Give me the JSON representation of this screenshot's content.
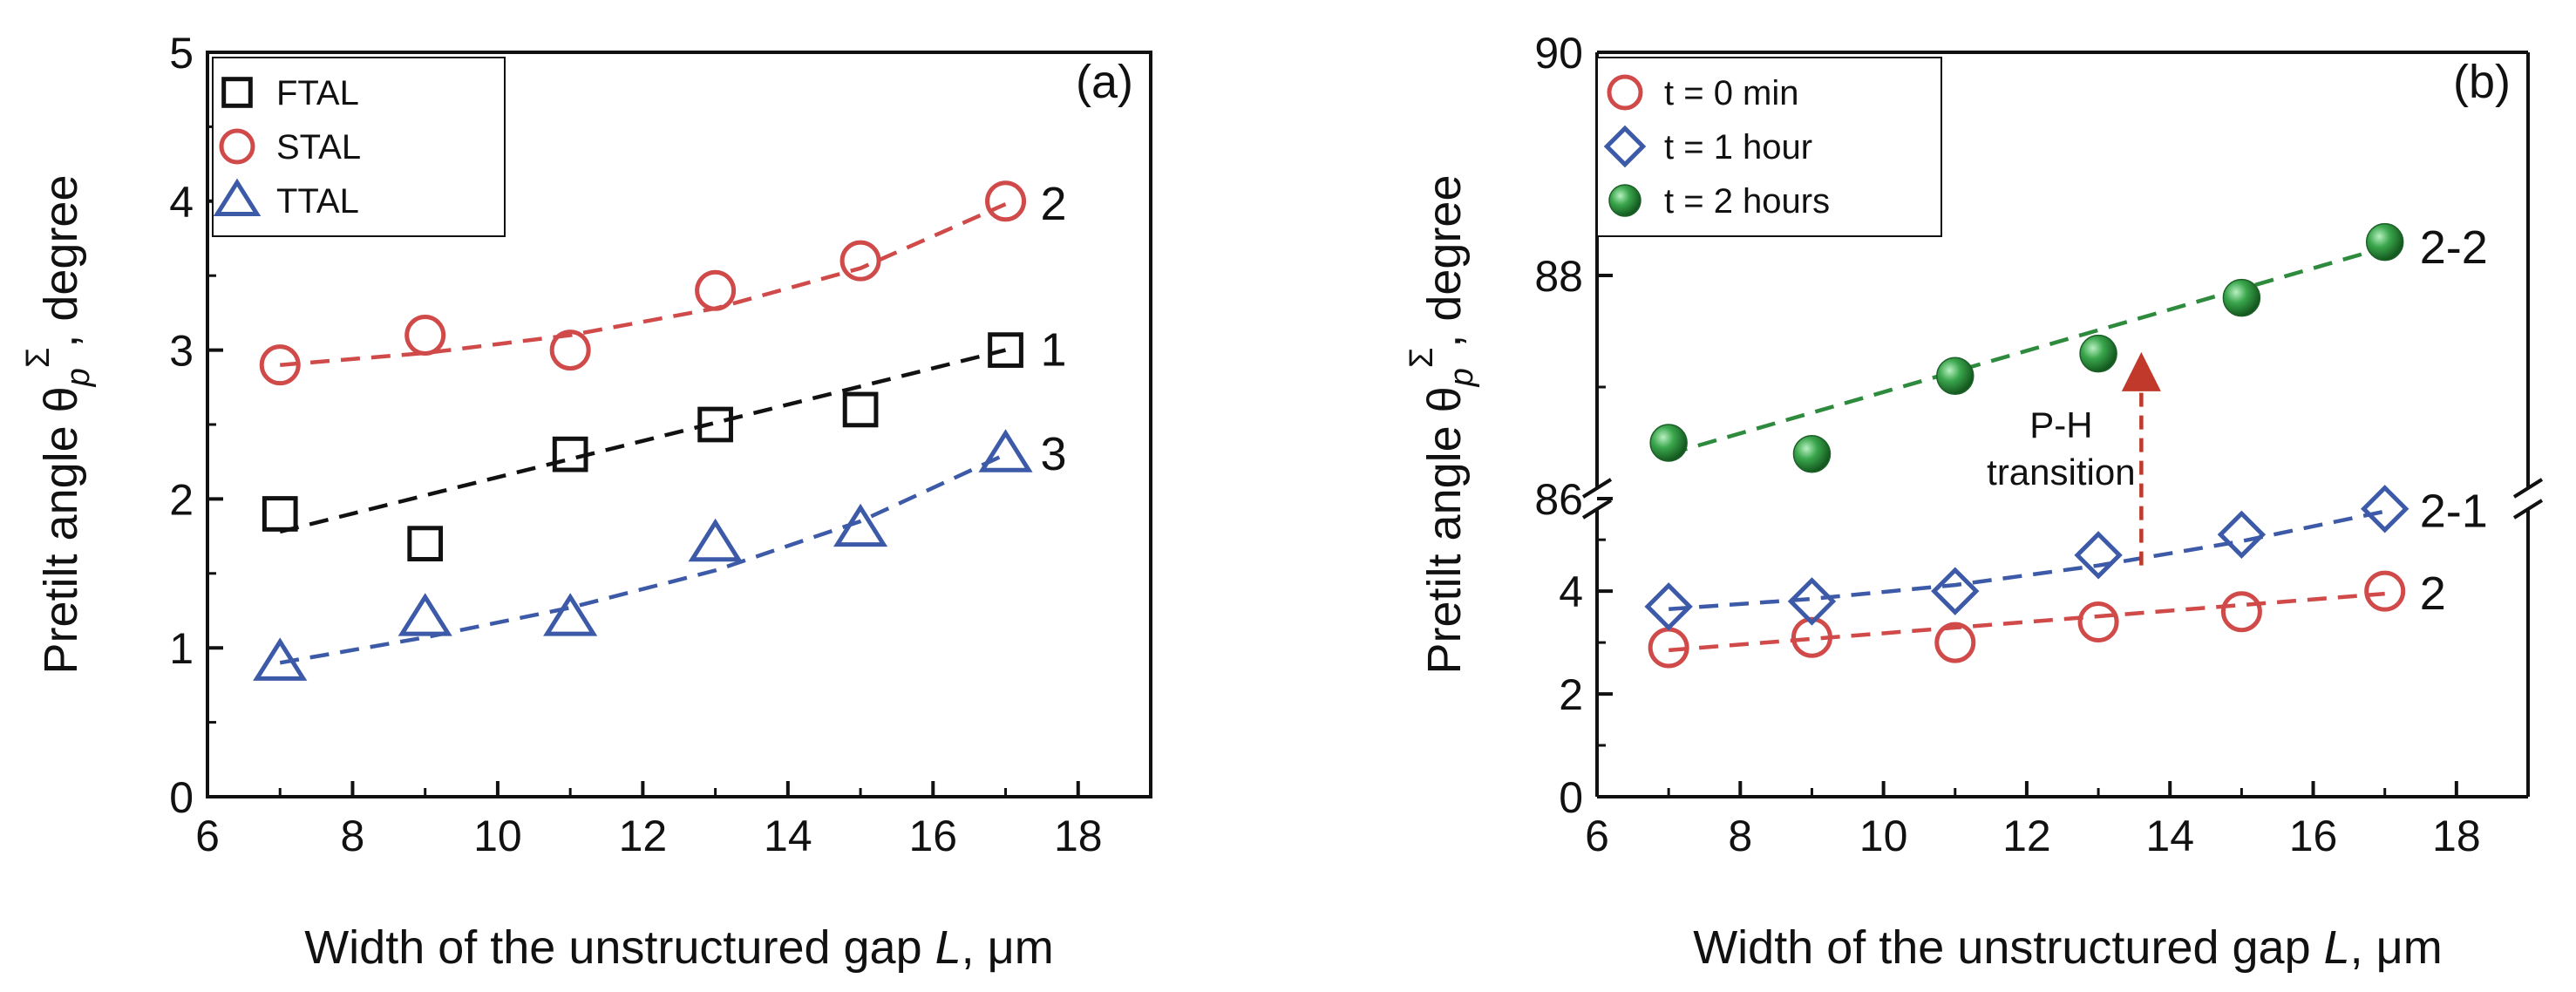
{
  "chart_data": [
    {
      "panel": "(a)",
      "type": "scatter",
      "xlabel_prefix": "Width of the unstructured gap ",
      "xlabel_var": "L",
      "xlabel_suffix": ", μm",
      "ylabel_prefix": "Pretilt angle θ",
      "ylabel_sub": "p",
      "ylabel_sup": "Σ",
      "ylabel_suffix": ", degree",
      "xlim": [
        6,
        19
      ],
      "ylim": [
        0,
        5
      ],
      "xticks": [
        "6",
        "8",
        "10",
        "12",
        "14",
        "16",
        "18"
      ],
      "yticks": [
        "0",
        "1",
        "2",
        "3",
        "4",
        "5"
      ],
      "legend_position": "top-left",
      "series": [
        {
          "name": "FTAL",
          "marker": "square",
          "color": "#111111",
          "label": "1",
          "x": [
            7,
            9,
            11,
            13,
            15,
            17
          ],
          "y": [
            1.9,
            1.7,
            2.3,
            2.5,
            2.6,
            3.0
          ],
          "fit": [
            [
              7,
              1.78
            ],
            [
              17,
              3.0
            ]
          ]
        },
        {
          "name": "STAL",
          "marker": "circle",
          "color": "#d04a4a",
          "label": "2",
          "x": [
            7,
            9,
            11,
            13,
            15,
            17
          ],
          "y": [
            2.9,
            3.1,
            3.0,
            3.4,
            3.6,
            4.0
          ],
          "fit": [
            [
              7,
              2.9
            ],
            [
              9,
              2.98
            ],
            [
              11,
              3.1
            ],
            [
              13,
              3.28
            ],
            [
              15,
              3.55
            ],
            [
              17,
              3.98
            ]
          ]
        },
        {
          "name": "TTAL",
          "marker": "triangle",
          "color": "#3c5aa8",
          "label": "3",
          "x": [
            7,
            9,
            11,
            13,
            15,
            17
          ],
          "y": [
            0.9,
            1.2,
            1.2,
            1.7,
            1.8,
            2.3
          ],
          "fit": [
            [
              7,
              0.9
            ],
            [
              9,
              1.07
            ],
            [
              11,
              1.27
            ],
            [
              13,
              1.52
            ],
            [
              15,
              1.85
            ],
            [
              17,
              2.3
            ]
          ]
        }
      ]
    },
    {
      "panel": "(b)",
      "type": "scatter",
      "broken_axis": true,
      "xlabel_prefix": "Width of the unstructured gap ",
      "xlabel_var": "L",
      "xlabel_suffix": ", μm",
      "ylabel_prefix": "Pretilt angle θ",
      "ylabel_sub": "p",
      "ylabel_sup": "Σ",
      "ylabel_suffix": ", degree",
      "xlim": [
        6,
        19
      ],
      "ylim_lower": [
        0,
        5.8
      ],
      "ylim_upper": [
        86,
        90
      ],
      "xticks": [
        "6",
        "8",
        "10",
        "12",
        "14",
        "16",
        "18"
      ],
      "yticks_lower": [
        "0",
        "2",
        "4"
      ],
      "yticks_upper": [
        "86",
        "88",
        "90"
      ],
      "legend_position": "top-left",
      "series": [
        {
          "name": "t = 0 min",
          "marker": "circle",
          "color": "#d04a4a",
          "label": "2",
          "x": [
            7,
            9,
            11,
            13,
            15,
            17
          ],
          "y": [
            2.9,
            3.1,
            3.0,
            3.4,
            3.6,
            4.0
          ],
          "fit": [
            [
              7,
              2.85
            ],
            [
              17,
              3.95
            ]
          ]
        },
        {
          "name": "t = 1 hour",
          "marker": "diamond",
          "color": "#3c5aa8",
          "label": "2-1",
          "x": [
            7,
            9,
            11,
            13,
            15,
            17
          ],
          "y": [
            3.7,
            3.8,
            4.0,
            4.7,
            5.1,
            5.6
          ],
          "fit": [
            [
              7,
              3.65
            ],
            [
              9,
              3.85
            ],
            [
              11,
              4.12
            ],
            [
              13,
              4.5
            ],
            [
              15,
              4.97
            ],
            [
              17,
              5.55
            ]
          ]
        },
        {
          "name": "t = 2 hours",
          "marker": "ball",
          "color": "#2e8b3e",
          "label": "2-2",
          "x": [
            7,
            9,
            11,
            13,
            15,
            17
          ],
          "y": [
            86.5,
            86.4,
            87.1,
            87.3,
            87.8,
            88.3
          ],
          "fit": [
            [
              7,
              86.4
            ],
            [
              17,
              88.25
            ]
          ]
        }
      ],
      "annotation": {
        "line1": "P-H",
        "line2": "transition",
        "arrow_x": 13.6,
        "arrow_from": 4.5,
        "arrow_to": 87.2
      }
    }
  ]
}
